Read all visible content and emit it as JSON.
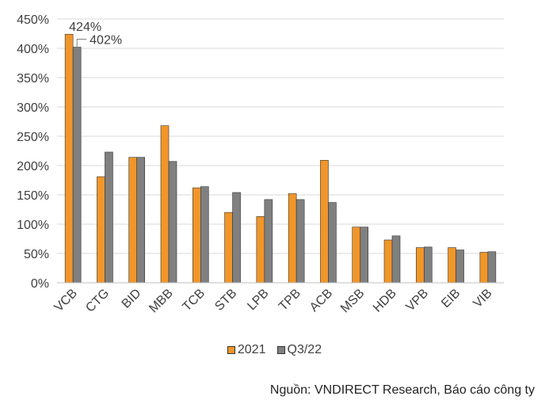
{
  "chart_data": {
    "type": "bar",
    "title": "",
    "xlabel": "",
    "ylabel": "",
    "ylim": [
      0,
      450
    ],
    "y_ticks": [
      "0%",
      "50%",
      "100%",
      "150%",
      "200%",
      "250%",
      "300%",
      "350%",
      "400%",
      "450%"
    ],
    "y_tick_values": [
      0,
      50,
      100,
      150,
      200,
      250,
      300,
      350,
      400,
      450
    ],
    "grid": true,
    "legend_position": "bottom",
    "categories": [
      "VCB",
      "CTG",
      "BID",
      "MBB",
      "TCB",
      "STB",
      "LPB",
      "TPB",
      "ACB",
      "MSB",
      "HDB",
      "VPB",
      "EIB",
      "VIB"
    ],
    "series": [
      {
        "name": "2021",
        "color": "#f0962a",
        "values": [
          424,
          181,
          214,
          268,
          162,
          120,
          113,
          152,
          209,
          95,
          73,
          60,
          60,
          52
        ]
      },
      {
        "name": "Q3/22",
        "color": "#808080",
        "values": [
          402,
          223,
          214,
          207,
          164,
          154,
          142,
          142,
          137,
          95,
          80,
          61,
          56,
          53
        ]
      }
    ],
    "annotations": [
      {
        "text": "424%",
        "series": "2021",
        "category": "VCB"
      },
      {
        "text": "402%",
        "series": "Q3/22",
        "category": "VCB"
      }
    ]
  },
  "legend": {
    "items": [
      "2021",
      "Q3/22"
    ]
  },
  "source": "Nguồn: VNDIRECT Research, Báo cáo công ty"
}
